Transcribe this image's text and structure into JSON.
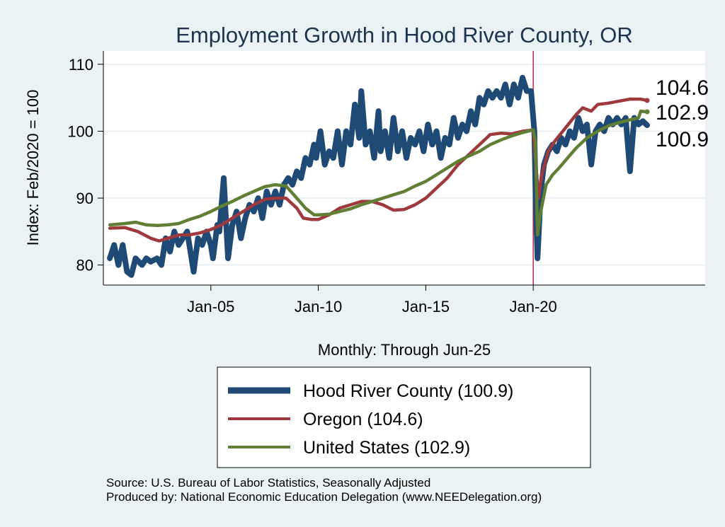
{
  "chart_data": {
    "type": "line",
    "title": "Employment Growth in Hood River  County, OR",
    "ylabel": "Index: Feb/2020 = 100",
    "xlabel": "Monthly: Through Jun-25",
    "ylim": [
      77,
      112
    ],
    "xlim": [
      2000.0,
      2028.0
    ],
    "yticks": [
      80,
      90,
      100,
      110
    ],
    "xticks": [
      {
        "x": 2005.0,
        "label": "Jan-05"
      },
      {
        "x": 2010.0,
        "label": "Jan-10"
      },
      {
        "x": 2015.0,
        "label": "Jan-15"
      },
      {
        "x": 2020.0,
        "label": "Jan-20"
      }
    ],
    "reference_line": {
      "x": 2020.0,
      "color": "#c0264a"
    },
    "series": [
      {
        "name": "Hood River  County (100.9)",
        "color": "#1f4a75",
        "end_label": "100.9",
        "points": [
          [
            2000.3,
            81
          ],
          [
            2000.5,
            83
          ],
          [
            2000.7,
            80
          ],
          [
            2000.9,
            83
          ],
          [
            2001.1,
            79
          ],
          [
            2001.3,
            78.5
          ],
          [
            2001.5,
            81
          ],
          [
            2001.8,
            80
          ],
          [
            2002.0,
            81
          ],
          [
            2002.2,
            80.5
          ],
          [
            2002.5,
            81
          ],
          [
            2002.7,
            80
          ],
          [
            2002.9,
            84
          ],
          [
            2003.1,
            82
          ],
          [
            2003.3,
            85
          ],
          [
            2003.5,
            83
          ],
          [
            2003.7,
            84
          ],
          [
            2003.9,
            85
          ],
          [
            2004.1,
            81
          ],
          [
            2004.2,
            79
          ],
          [
            2004.4,
            84
          ],
          [
            2004.6,
            83
          ],
          [
            2004.8,
            85
          ],
          [
            2005.0,
            83
          ],
          [
            2005.1,
            81
          ],
          [
            2005.3,
            86
          ],
          [
            2005.4,
            85
          ],
          [
            2005.6,
            93
          ],
          [
            2005.8,
            81
          ],
          [
            2006.0,
            86
          ],
          [
            2006.2,
            88
          ],
          [
            2006.4,
            84
          ],
          [
            2006.6,
            87
          ],
          [
            2006.8,
            89
          ],
          [
            2007.0,
            88
          ],
          [
            2007.2,
            90
          ],
          [
            2007.4,
            87
          ],
          [
            2007.6,
            91
          ],
          [
            2007.8,
            89
          ],
          [
            2008.0,
            91
          ],
          [
            2008.2,
            89
          ],
          [
            2008.4,
            92
          ],
          [
            2008.6,
            93
          ],
          [
            2008.8,
            92
          ],
          [
            2009.0,
            94
          ],
          [
            2009.2,
            93
          ],
          [
            2009.4,
            96
          ],
          [
            2009.6,
            95
          ],
          [
            2009.8,
            98
          ],
          [
            2009.9,
            96
          ],
          [
            2010.1,
            100
          ],
          [
            2010.3,
            95
          ],
          [
            2010.5,
            97
          ],
          [
            2010.7,
            96
          ],
          [
            2010.9,
            100
          ],
          [
            2011.1,
            95
          ],
          [
            2011.3,
            100
          ],
          [
            2011.5,
            98
          ],
          [
            2011.7,
            104
          ],
          [
            2011.9,
            99
          ],
          [
            2012.0,
            106
          ],
          [
            2012.2,
            98
          ],
          [
            2012.4,
            100
          ],
          [
            2012.6,
            96
          ],
          [
            2012.8,
            103
          ],
          [
            2012.9,
            97
          ],
          [
            2013.1,
            100
          ],
          [
            2013.3,
            96
          ],
          [
            2013.5,
            102
          ],
          [
            2013.7,
            97
          ],
          [
            2013.9,
            100
          ],
          [
            2014.1,
            96
          ],
          [
            2014.3,
            99
          ],
          [
            2014.5,
            98
          ],
          [
            2014.7,
            100
          ],
          [
            2014.9,
            97
          ],
          [
            2015.1,
            101
          ],
          [
            2015.3,
            98
          ],
          [
            2015.5,
            100
          ],
          [
            2015.7,
            96
          ],
          [
            2015.9,
            99
          ],
          [
            2016.1,
            98
          ],
          [
            2016.3,
            102
          ],
          [
            2016.5,
            99
          ],
          [
            2016.7,
            101
          ],
          [
            2016.9,
            100
          ],
          [
            2017.1,
            103
          ],
          [
            2017.3,
            101
          ],
          [
            2017.5,
            105
          ],
          [
            2017.7,
            104
          ],
          [
            2017.9,
            106
          ],
          [
            2018.1,
            105
          ],
          [
            2018.3,
            106
          ],
          [
            2018.5,
            105
          ],
          [
            2018.7,
            107
          ],
          [
            2018.9,
            104
          ],
          [
            2019.1,
            107
          ],
          [
            2019.3,
            105
          ],
          [
            2019.5,
            108
          ],
          [
            2019.7,
            106
          ],
          [
            2019.9,
            106
          ],
          [
            2020.05,
            100
          ],
          [
            2020.12,
            89
          ],
          [
            2020.2,
            81
          ],
          [
            2020.35,
            91
          ],
          [
            2020.5,
            95
          ],
          [
            2020.7,
            97
          ],
          [
            2020.9,
            98
          ],
          [
            2021.1,
            97
          ],
          [
            2021.3,
            99
          ],
          [
            2021.5,
            98
          ],
          [
            2021.7,
            100
          ],
          [
            2021.9,
            99
          ],
          [
            2022.1,
            102
          ],
          [
            2022.3,
            100
          ],
          [
            2022.5,
            101
          ],
          [
            2022.7,
            95
          ],
          [
            2022.9,
            100
          ],
          [
            2023.1,
            101
          ],
          [
            2023.3,
            100
          ],
          [
            2023.5,
            102
          ],
          [
            2023.7,
            101
          ],
          [
            2023.9,
            102
          ],
          [
            2024.1,
            101
          ],
          [
            2024.3,
            102
          ],
          [
            2024.5,
            94
          ],
          [
            2024.7,
            102
          ],
          [
            2024.9,
            101
          ],
          [
            2025.1,
            101.5
          ],
          [
            2025.3,
            100.9
          ]
        ]
      },
      {
        "name": "Oregon (104.6)",
        "color": "#9e3a3e",
        "end_label": "104.6",
        "points": [
          [
            2000.3,
            85.5
          ],
          [
            2001.0,
            85.6
          ],
          [
            2001.6,
            85.0
          ],
          [
            2002.2,
            84.0
          ],
          [
            2002.6,
            83.6
          ],
          [
            2003.0,
            84.0
          ],
          [
            2003.5,
            84.5
          ],
          [
            2004.0,
            84.5
          ],
          [
            2004.5,
            84.8
          ],
          [
            2005.0,
            85.3
          ],
          [
            2005.5,
            86.0
          ],
          [
            2006.0,
            87.0
          ],
          [
            2006.5,
            88.0
          ],
          [
            2007.0,
            89.0
          ],
          [
            2007.5,
            89.8
          ],
          [
            2008.0,
            90.0
          ],
          [
            2008.5,
            90.0
          ],
          [
            2009.0,
            88.5
          ],
          [
            2009.3,
            87.0
          ],
          [
            2009.7,
            86.8
          ],
          [
            2010.0,
            86.8
          ],
          [
            2010.5,
            87.5
          ],
          [
            2011.0,
            88.5
          ],
          [
            2011.5,
            89.0
          ],
          [
            2012.0,
            89.5
          ],
          [
            2012.5,
            89.5
          ],
          [
            2013.0,
            89.0
          ],
          [
            2013.5,
            88.2
          ],
          [
            2014.0,
            88.3
          ],
          [
            2014.5,
            89.0
          ],
          [
            2015.0,
            90.0
          ],
          [
            2015.5,
            91.5
          ],
          [
            2016.0,
            93.0
          ],
          [
            2016.5,
            95.0
          ],
          [
            2017.0,
            96.5
          ],
          [
            2017.5,
            98.0
          ],
          [
            2018.0,
            99.5
          ],
          [
            2018.5,
            99.7
          ],
          [
            2019.0,
            99.6
          ],
          [
            2019.5,
            100.0
          ],
          [
            2020.0,
            100.2
          ],
          [
            2020.1,
            96.0
          ],
          [
            2020.25,
            90.0
          ],
          [
            2020.4,
            93.5
          ],
          [
            2020.7,
            97.0
          ],
          [
            2021.0,
            98.5
          ],
          [
            2021.5,
            100.5
          ],
          [
            2022.0,
            102.5
          ],
          [
            2022.3,
            103.5
          ],
          [
            2022.7,
            103.0
          ],
          [
            2023.0,
            104.0
          ],
          [
            2023.5,
            104.2
          ],
          [
            2024.0,
            104.5
          ],
          [
            2024.5,
            104.8
          ],
          [
            2025.0,
            104.8
          ],
          [
            2025.3,
            104.6
          ]
        ]
      },
      {
        "name": "United States (102.9)",
        "color": "#617e35",
        "end_label": "102.9",
        "points": [
          [
            2000.3,
            86.0
          ],
          [
            2001.0,
            86.2
          ],
          [
            2001.5,
            86.4
          ],
          [
            2002.0,
            86.0
          ],
          [
            2002.5,
            85.9
          ],
          [
            2003.0,
            86.0
          ],
          [
            2003.5,
            86.2
          ],
          [
            2004.0,
            86.8
          ],
          [
            2004.5,
            87.3
          ],
          [
            2005.0,
            88.0
          ],
          [
            2005.5,
            88.8
          ],
          [
            2006.0,
            89.5
          ],
          [
            2006.5,
            90.3
          ],
          [
            2007.0,
            91.0
          ],
          [
            2007.5,
            91.7
          ],
          [
            2008.0,
            92.0
          ],
          [
            2008.5,
            91.8
          ],
          [
            2009.0,
            90.0
          ],
          [
            2009.4,
            88.5
          ],
          [
            2009.8,
            87.5
          ],
          [
            2010.0,
            87.5
          ],
          [
            2010.5,
            87.6
          ],
          [
            2011.0,
            88.0
          ],
          [
            2011.5,
            88.4
          ],
          [
            2012.0,
            89.0
          ],
          [
            2012.5,
            89.5
          ],
          [
            2013.0,
            90.0
          ],
          [
            2013.5,
            90.5
          ],
          [
            2014.0,
            91.0
          ],
          [
            2014.5,
            91.8
          ],
          [
            2015.0,
            92.5
          ],
          [
            2015.5,
            93.5
          ],
          [
            2016.0,
            94.5
          ],
          [
            2016.5,
            95.5
          ],
          [
            2017.0,
            96.3
          ],
          [
            2017.5,
            97.0
          ],
          [
            2018.0,
            98.0
          ],
          [
            2018.5,
            98.7
          ],
          [
            2019.0,
            99.3
          ],
          [
            2019.5,
            99.8
          ],
          [
            2020.0,
            100.2
          ],
          [
            2020.1,
            98.5
          ],
          [
            2020.2,
            84.5
          ],
          [
            2020.35,
            88.0
          ],
          [
            2020.6,
            92.0
          ],
          [
            2020.9,
            93.5
          ],
          [
            2021.2,
            94.5
          ],
          [
            2021.6,
            96.0
          ],
          [
            2022.0,
            97.5
          ],
          [
            2022.5,
            99.0
          ],
          [
            2023.0,
            100.0
          ],
          [
            2023.5,
            100.8
          ],
          [
            2024.0,
            101.3
          ],
          [
            2024.5,
            101.7
          ],
          [
            2024.9,
            102.0
          ],
          [
            2025.0,
            103.0
          ],
          [
            2025.3,
            102.9
          ]
        ]
      }
    ],
    "legend": {
      "position": "bottom",
      "entries": [
        "Hood River  County (100.9)",
        "Oregon (104.6)",
        "United States (102.9)"
      ]
    },
    "notes": [
      "Source: U.S. Bureau of Labor Statistics, Seasonally Adjusted",
      "Produced by: National Economic Education Delegation (www.NEEDelegation.org)"
    ]
  }
}
